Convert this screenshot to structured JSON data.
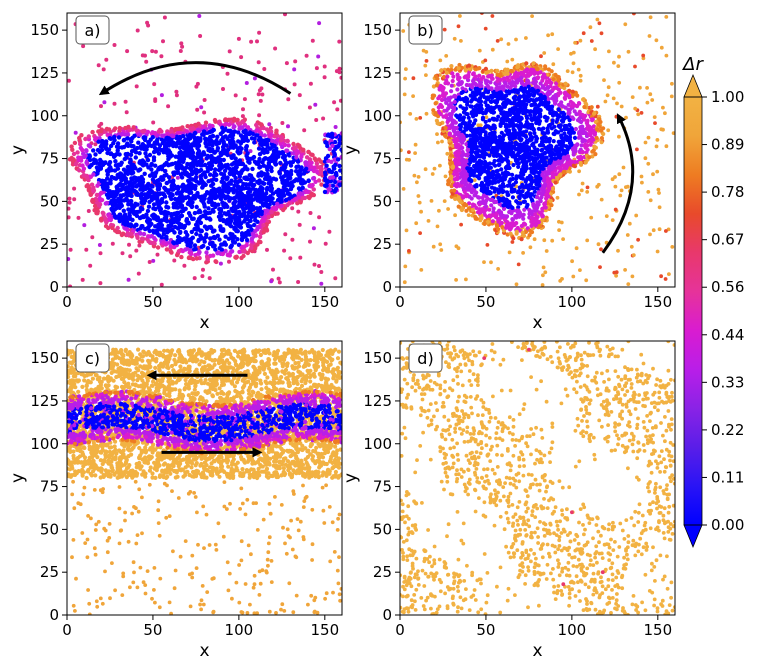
{
  "chart_data": [
    {
      "type": "scatter",
      "panel_label": "a)",
      "xlabel": "x",
      "ylabel": "y",
      "xlim": [
        0,
        160
      ],
      "ylim": [
        0,
        160
      ],
      "xticks": [
        0,
        50,
        100,
        150
      ],
      "yticks": [
        0,
        25,
        50,
        75,
        100,
        125,
        150
      ],
      "description": "Dense circular cluster (delta r near 0) centered around x 75, y 60 with a magenta rim; sparse pink particles elsewhere",
      "cluster": {
        "center": [
          75,
          60
        ],
        "radii": [
          70,
          40
        ],
        "rim_width": 6
      },
      "arrow": {
        "direction": "counter-clockwise",
        "from": [
          130,
          113
        ],
        "to": [
          20,
          113
        ],
        "peak_y": 131
      }
    },
    {
      "type": "scatter",
      "panel_label": "b)",
      "xlabel": "x",
      "ylabel": "y",
      "xlim": [
        0,
        160
      ],
      "ylim": [
        0,
        160
      ],
      "xticks": [
        0,
        50,
        100,
        150
      ],
      "yticks": [
        0,
        25,
        50,
        75,
        100,
        125,
        150
      ],
      "cluster": {
        "center": [
          65,
          85
        ],
        "radii": [
          45,
          50
        ],
        "rim_width": 10
      },
      "arrow": {
        "direction": "counter-clockwise",
        "from": [
          118,
          20
        ],
        "to": [
          127,
          100
        ],
        "peak_x": 135
      }
    },
    {
      "type": "scatter",
      "panel_label": "c)",
      "xlabel": "x",
      "ylabel": "y",
      "xlim": [
        0,
        160
      ],
      "ylim": [
        0,
        160
      ],
      "xticks": [
        0,
        50,
        100,
        150
      ],
      "yticks": [
        0,
        25,
        50,
        75,
        100,
        125,
        150
      ],
      "band": {
        "y_range": [
          80,
          155
        ],
        "core_y_range": [
          98,
          127
        ]
      },
      "arrows": [
        {
          "from": [
            105,
            140
          ],
          "to": [
            48,
            140
          ]
        },
        {
          "from": [
            55,
            95
          ],
          "to": [
            112,
            95
          ]
        }
      ]
    },
    {
      "type": "scatter",
      "panel_label": "d)",
      "xlabel": "x",
      "ylabel": "y",
      "xlim": [
        0,
        160
      ],
      "ylim": [
        0,
        160
      ],
      "xticks": [
        0,
        50,
        100,
        150
      ],
      "yticks": [
        0,
        25,
        50,
        75,
        100,
        125,
        150
      ],
      "description": "Dispersed orange particles forming filament-like patterns across the box"
    }
  ],
  "colorbar": {
    "label": "Δr",
    "ticks": [
      "0.00",
      "0.11",
      "0.22",
      "0.33",
      "0.44",
      "0.56",
      "0.67",
      "0.78",
      "0.89",
      "1.00"
    ],
    "range": [
      0,
      1
    ],
    "colors": [
      "#0000ff",
      "#2a14f5",
      "#5a1ee8",
      "#8a23e6",
      "#b91ee8",
      "#d91cd0",
      "#e6339a",
      "#e8386c",
      "#e84a2b",
      "#ee7c22",
      "#f0a53a",
      "#f2b243"
    ]
  }
}
